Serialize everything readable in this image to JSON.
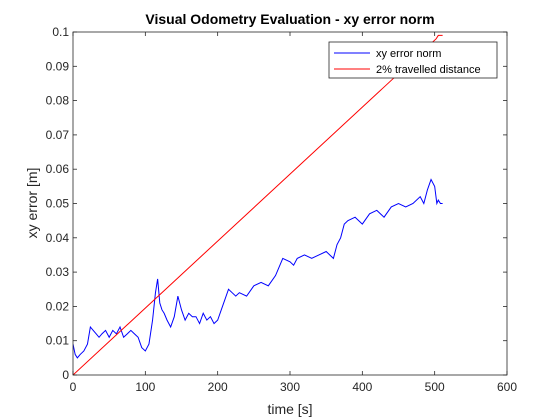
{
  "chart_data": {
    "type": "line",
    "title": "Visual Odometry Evaluation - xy error norm",
    "xlabel": "time [s]",
    "ylabel": "xy error [m]",
    "xlim": [
      0,
      600
    ],
    "ylim": [
      0,
      0.1
    ],
    "x_ticks": [
      "0",
      "100",
      "200",
      "300",
      "400",
      "500",
      "600"
    ],
    "y_ticks": [
      "0",
      "0.01",
      "0.02",
      "0.03",
      "0.04",
      "0.05",
      "0.06",
      "0.07",
      "0.08",
      "0.09",
      "0.1"
    ],
    "grid": false,
    "box": true,
    "legend": {
      "location": "top-right",
      "entries": [
        "xy error norm",
        "2% travelled distance"
      ]
    },
    "series": [
      {
        "name": "xy error norm",
        "color": "#0000ff",
        "x": [
          0,
          3,
          6,
          10,
          15,
          20,
          24,
          28,
          32,
          36,
          40,
          45,
          50,
          55,
          60,
          65,
          70,
          75,
          80,
          85,
          90,
          95,
          100,
          105,
          110,
          114,
          117,
          120,
          123,
          126,
          130,
          135,
          140,
          145,
          150,
          155,
          160,
          165,
          170,
          175,
          180,
          185,
          190,
          195,
          200,
          205,
          210,
          215,
          220,
          225,
          230,
          240,
          250,
          260,
          270,
          280,
          290,
          300,
          305,
          310,
          320,
          330,
          340,
          350,
          360,
          365,
          370,
          375,
          380,
          390,
          400,
          410,
          420,
          430,
          440,
          450,
          460,
          470,
          480,
          485,
          490,
          495,
          500,
          503,
          505,
          508,
          511
        ],
        "y": [
          0.009,
          0.006,
          0.005,
          0.006,
          0.007,
          0.009,
          0.014,
          0.013,
          0.012,
          0.011,
          0.012,
          0.013,
          0.011,
          0.013,
          0.012,
          0.014,
          0.011,
          0.012,
          0.013,
          0.012,
          0.011,
          0.008,
          0.007,
          0.009,
          0.016,
          0.024,
          0.028,
          0.021,
          0.019,
          0.018,
          0.016,
          0.014,
          0.017,
          0.023,
          0.019,
          0.016,
          0.018,
          0.017,
          0.017,
          0.015,
          0.018,
          0.016,
          0.017,
          0.015,
          0.016,
          0.019,
          0.022,
          0.025,
          0.024,
          0.023,
          0.024,
          0.023,
          0.026,
          0.027,
          0.026,
          0.029,
          0.034,
          0.033,
          0.032,
          0.034,
          0.035,
          0.034,
          0.035,
          0.036,
          0.034,
          0.038,
          0.04,
          0.044,
          0.045,
          0.046,
          0.044,
          0.047,
          0.048,
          0.046,
          0.049,
          0.05,
          0.049,
          0.05,
          0.052,
          0.05,
          0.054,
          0.057,
          0.055,
          0.05,
          0.051,
          0.05,
          0.05
        ]
      },
      {
        "name": "2% travelled distance",
        "color": "#ff0000",
        "x": [
          0,
          502,
          505,
          508,
          511
        ],
        "y": [
          0,
          0.098,
          0.099,
          0.099,
          0.099
        ]
      }
    ]
  }
}
